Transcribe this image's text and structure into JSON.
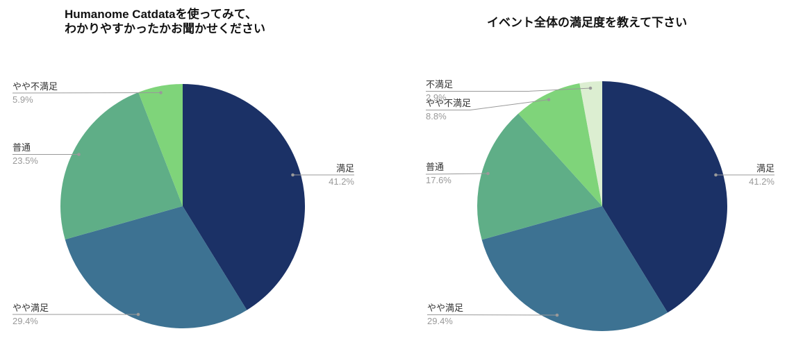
{
  "page": {
    "background": "#ffffff",
    "title_color": "#111111",
    "label_color": "#333333",
    "percent_color": "#999999",
    "leader_line_color": "#999999"
  },
  "chart_data": [
    {
      "type": "pie",
      "title": "Humanome Catdataを使ってみて、わかりやすかったかお聞かせください",
      "title_lines": [
        "Humanome Catdataを使ってみて、",
        "わかりやすかったかお聞かせください"
      ],
      "labels": [
        "満足",
        "やや満足",
        "普通",
        "やや不満足"
      ],
      "values": [
        41.2,
        29.4,
        23.5,
        5.9
      ],
      "percent_labels": [
        "41.2%",
        "29.4%",
        "23.5%",
        "5.9%"
      ],
      "colors": [
        "#1b3166",
        "#3d7292",
        "#5fae87",
        "#7fd47a"
      ],
      "slice_ids": [
        "manzoku",
        "yaya-manzoku",
        "futsuu",
        "yaya-fumanzoku"
      ],
      "units": "%",
      "start_angle_deg": 0,
      "direction": "clockwise",
      "legend": "none",
      "label_style": "outside with gray leader lines, name above line, percent below"
    },
    {
      "type": "pie",
      "title": "イベント全体の満足度を教えて下さい",
      "labels": [
        "満足",
        "やや満足",
        "普通",
        "やや不満足",
        "不満足"
      ],
      "values": [
        41.2,
        29.4,
        17.6,
        8.8,
        2.9
      ],
      "percent_labels": [
        "41.2%",
        "29.4%",
        "17.6%",
        "8.8%",
        "2.9%"
      ],
      "colors": [
        "#1b3166",
        "#3d7292",
        "#5fae87",
        "#7fd47a",
        "#dceed1"
      ],
      "slice_ids": [
        "manzoku",
        "yaya-manzoku",
        "futsuu",
        "yaya-fumanzoku",
        "fumanzoku"
      ],
      "units": "%",
      "start_angle_deg": 0,
      "direction": "clockwise",
      "legend": "none",
      "label_style": "outside with gray leader lines, name above line, percent below"
    }
  ]
}
